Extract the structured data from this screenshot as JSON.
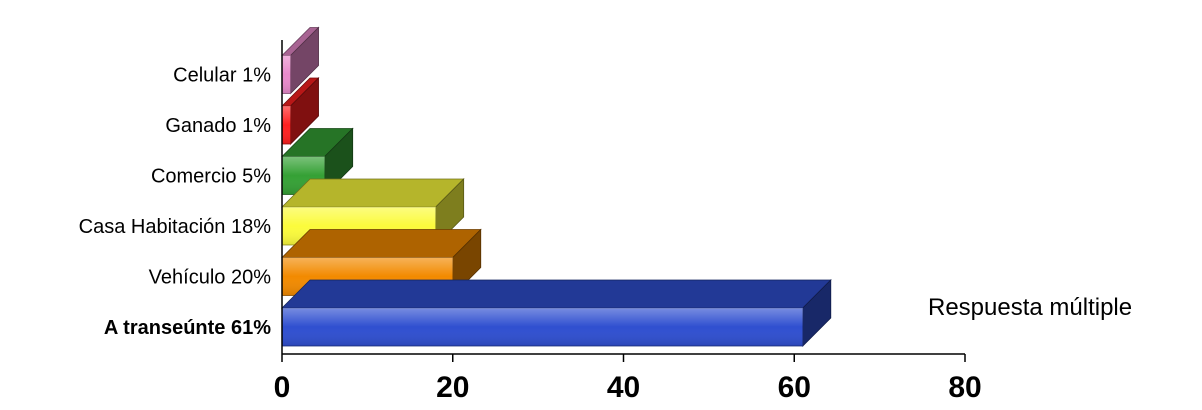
{
  "chart_data": {
    "type": "bar",
    "orientation": "horizontal",
    "style": "3d",
    "categories": [
      "A transeúnte 61%",
      "Vehículo 20%",
      "Casa Habitación 18%",
      "Comercio 5%",
      "Ganado 1%",
      "Celular 1%"
    ],
    "values": [
      61,
      20,
      18,
      5,
      1,
      1
    ],
    "colors": [
      "#2f4fd0",
      "#f28a00",
      "#fbfb3c",
      "#35a135",
      "#ff2020",
      "#e88acb"
    ],
    "bold_category_index": 0,
    "xlim": [
      0,
      80
    ],
    "x_ticks": [
      "0",
      "20",
      "40",
      "60",
      "80"
    ],
    "annotation": "Respuesta múltiple",
    "grid": false,
    "legend": "none"
  }
}
